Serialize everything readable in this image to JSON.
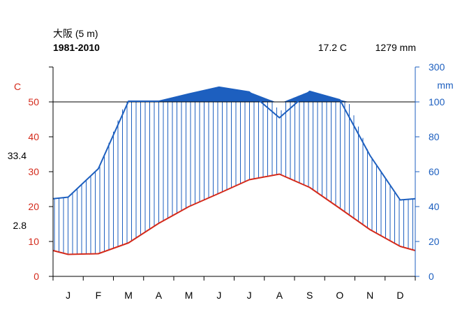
{
  "chart_data": {
    "type": "climate-diagram",
    "station": "大阪 (5 m)",
    "period": "1981-2010",
    "annual_mean_temp": "17.2 C",
    "annual_precip": "1279 mm",
    "temp_axis_label": "C",
    "precip_axis_label": "mm",
    "side_labels": [
      "33.4",
      "2.8"
    ],
    "side_label_values": [
      33.4,
      2.8
    ],
    "months": [
      "J",
      "F",
      "M",
      "A",
      "M",
      "J",
      "J",
      "A",
      "S",
      "O",
      "N",
      "D"
    ],
    "temp_ticks": [
      0,
      10,
      20,
      30,
      40,
      50
    ],
    "precip_ticks": [
      0,
      20,
      40,
      60,
      80,
      100,
      300
    ],
    "temp_ylim": [
      0,
      60
    ],
    "precip_scale_note": "above 100 mm the precipitation axis is compressed (100 to 300 mm)",
    "temperature": [
      6.3,
      6.5,
      9.6,
      15.2,
      20.0,
      23.8,
      27.7,
      29.3,
      25.5,
      19.5,
      13.4,
      8.6
    ],
    "precipitation": [
      45.4,
      61.7,
      104.2,
      103.8,
      145.5,
      184.5,
      157.0,
      90.9,
      160.7,
      112.3,
      69.3,
      43.8
    ],
    "temp_start": 7.4,
    "precip_start": 44.5,
    "temp_end": 7.4,
    "precip_end": 44.5,
    "colors": {
      "temperature": "#d42a1b",
      "precipitation": "#1d5fbf",
      "humid_fill": "#1d5fbf",
      "axis": "#000000"
    }
  }
}
